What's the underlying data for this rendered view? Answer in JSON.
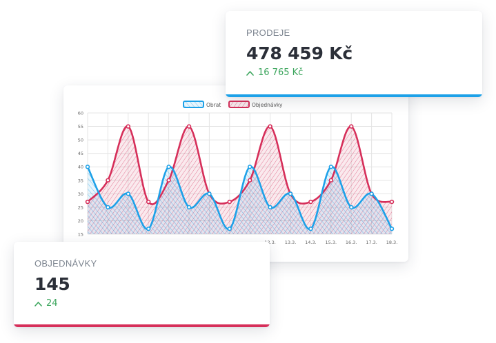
{
  "colors": {
    "blue": "#1da1e8",
    "red": "#d62f5a",
    "green": "#3ba55c",
    "grid": "#e4e4e4",
    "text_dark": "#2b2f38",
    "text_muted": "#7d8590"
  },
  "sales_card": {
    "label": "PRODEJE",
    "value": "478 459 Kč",
    "change": "16 765 Kč",
    "change_icon": "chevron-up-icon"
  },
  "orders_card": {
    "label": "OBJEDNÁVKY",
    "value": "145",
    "change": "24",
    "change_icon": "chevron-up-icon"
  },
  "chart_data": {
    "type": "area",
    "categories": [
      "",
      "",
      "",
      "",
      "",
      "",
      "",
      "",
      "",
      "12.3.",
      "13.3.",
      "14.3.",
      "15.3.",
      "16.3.",
      "17.3.",
      "18.3."
    ],
    "ylim": [
      15,
      60
    ],
    "yticks": [
      "15",
      "20",
      "25",
      "30",
      "35",
      "40",
      "45",
      "50",
      "55",
      "60"
    ],
    "legend_position": "top",
    "grid": true,
    "series": [
      {
        "name": "Obrat",
        "color": "#1da1e8",
        "values": [
          40,
          25,
          30,
          17,
          40,
          25,
          30,
          17,
          40,
          25,
          30,
          17,
          40,
          25,
          30,
          17
        ]
      },
      {
        "name": "Objednávky",
        "color": "#d62f5a",
        "values": [
          27,
          35,
          55,
          27,
          35,
          55,
          30,
          27,
          35,
          55,
          30,
          27,
          35,
          55,
          30,
          27
        ]
      }
    ]
  }
}
